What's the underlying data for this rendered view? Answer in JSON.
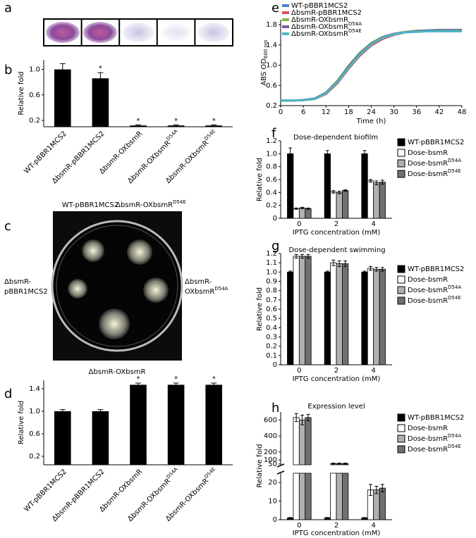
{
  "image_panels": [
    {
      "panel": "a"
    },
    {
      "panel": "c",
      "labels": [
        {
          "text": "WT-pBBR1MCS2"
        },
        {
          "text": "ΔbsmR-OXbsmR",
          "sup": "D54E"
        },
        {
          "text": "ΔbsmR-"
        },
        {
          "text": "pBBR1MCS2"
        },
        {
          "text": "ΔbsmR-"
        },
        {
          "text": "OXbsmR",
          "sup": "D54A"
        },
        {
          "text": "ΔbsmR-OXbsmR"
        }
      ]
    }
  ],
  "chart_data": [
    {
      "type": "bar",
      "panel": "b",
      "ylabel": "Relative fold",
      "categories": [
        "WT-pBBR1MCS2",
        "ΔbsmR-pBBR1MCS2",
        "ΔbsmR-OXbsmR",
        "ΔbsmR-OXbsmR",
        "ΔbsmR-OXbsmR"
      ],
      "category_superscripts": [
        null,
        null,
        null,
        "D54A",
        "D54E"
      ],
      "values": [
        1.0,
        0.86,
        0.12,
        0.12,
        0.12
      ],
      "errors": [
        0.09,
        0.09,
        0.01,
        0.01,
        0.01
      ],
      "annotations": [
        null,
        "*",
        "*",
        "*",
        "*"
      ],
      "color": "#000000",
      "ylim": [
        0.1,
        1.15
      ],
      "yticks": [
        0.2,
        0.6,
        {
          "value": 1,
          "label": "1.0"
        }
      ]
    },
    {
      "type": "bar",
      "panel": "d",
      "ylabel": "Relative fold",
      "categories": [
        "WT-pBBR1MCS2",
        "ΔbsmR-pBBR1MCS2",
        "ΔbsmR-OXbsmR",
        "ΔbsmR-OXbsmR",
        "ΔbsmR-OXbsmR"
      ],
      "category_superscripts": [
        null,
        null,
        null,
        "D54A",
        "D54E"
      ],
      "values": [
        1.0,
        1.0,
        1.47,
        1.47,
        1.47
      ],
      "errors": [
        0.03,
        0.03,
        0.03,
        0.03,
        0.03
      ],
      "annotations": [
        null,
        null,
        "*",
        "*",
        "*"
      ],
      "color": "#000000",
      "ylim": [
        0.05,
        1.55
      ],
      "yticks": [
        0.2,
        0.6,
        {
          "value": 1,
          "label": "1.0"
        },
        1.4
      ]
    },
    {
      "type": "line",
      "panel": "e",
      "xlabel": "Time (h)",
      "ylabel": "ABS OD",
      "ylabel_subscript": "600 nm",
      "x": [
        0,
        3,
        6,
        9,
        12,
        15,
        18,
        21,
        24,
        27,
        30,
        33,
        36,
        39,
        42,
        45,
        48
      ],
      "xlim": [
        0,
        48
      ],
      "xticks": [
        0,
        6,
        12,
        18,
        24,
        30,
        36,
        42,
        48
      ],
      "ylim": [
        0.2,
        1.9
      ],
      "yticks": [
        0.2,
        0.6,
        {
          "value": 1,
          "label": "1.0"
        },
        1.4,
        1.8
      ],
      "series": [
        {
          "name": "WT-pBBR1MCS2",
          "color": "#4a86c8",
          "values": [
            0.3,
            0.3,
            0.31,
            0.34,
            0.45,
            0.68,
            0.98,
            1.24,
            1.43,
            1.55,
            1.62,
            1.66,
            1.68,
            1.69,
            1.7,
            1.7,
            1.7
          ]
        },
        {
          "name": "ΔbsmR-pBBR1MCS2",
          "color": "#d9534f",
          "values": [
            0.3,
            0.3,
            0.31,
            0.33,
            0.43,
            0.64,
            0.93,
            1.19,
            1.39,
            1.52,
            1.6,
            1.65,
            1.67,
            1.68,
            1.69,
            1.69,
            1.69
          ]
        },
        {
          "name": "ΔbsmR-OXbsmR",
          "color": "#8ab44a",
          "values": [
            0.3,
            0.3,
            0.31,
            0.34,
            0.46,
            0.69,
            0.99,
            1.25,
            1.44,
            1.56,
            1.62,
            1.66,
            1.68,
            1.68,
            1.69,
            1.69,
            1.69
          ]
        },
        {
          "name": "ΔbsmR-OXbsmR",
          "name_superscript": "D54A",
          "color": "#7e57a0",
          "values": [
            0.3,
            0.3,
            0.31,
            0.34,
            0.45,
            0.67,
            0.97,
            1.23,
            1.42,
            1.55,
            1.62,
            1.65,
            1.67,
            1.68,
            1.68,
            1.68,
            1.68
          ]
        },
        {
          "name": "ΔbsmR-OXbsmR",
          "name_superscript": "D54E",
          "color": "#4bb6c8",
          "values": [
            0.3,
            0.3,
            0.31,
            0.33,
            0.44,
            0.66,
            0.95,
            1.21,
            1.41,
            1.54,
            1.61,
            1.65,
            1.66,
            1.67,
            1.67,
            1.67,
            1.67
          ]
        }
      ]
    },
    {
      "type": "grouped_bar",
      "panel": "f",
      "title": "Dose-dependent biofilm",
      "xlabel": "IPTG concentration (mM)",
      "ylabel": "Relative fold",
      "categories": [
        "0",
        "2",
        "4"
      ],
      "ylim": [
        0,
        1.2
      ],
      "yticks": [
        0,
        0.2,
        0.4,
        0.6,
        0.8,
        {
          "value": 1,
          "label": "1.0"
        },
        1.2
      ],
      "series": [
        {
          "name": "WT-pBBR1MCS2",
          "color": "#000000",
          "values": [
            1.0,
            1.0,
            1.0
          ],
          "errors": [
            0.09,
            0.05,
            0.05
          ]
        },
        {
          "name": "Dose-bsmR",
          "color": "#ffffff",
          "values": [
            0.15,
            0.41,
            0.58
          ],
          "errors": [
            0.01,
            0.02,
            0.02
          ]
        },
        {
          "name": "Dose-bsmR",
          "name_superscript": "D54A",
          "color": "#b0b0b0",
          "values": [
            0.16,
            0.4,
            0.55
          ],
          "errors": [
            0.01,
            0.02,
            0.03
          ]
        },
        {
          "name": "Dose-bsmR",
          "name_superscript": "D54E",
          "color": "#707070",
          "values": [
            0.15,
            0.43,
            0.56
          ],
          "errors": [
            0.01,
            0.01,
            0.03
          ]
        }
      ]
    },
    {
      "type": "grouped_bar",
      "panel": "g",
      "title": "Dose-dependent swimming",
      "xlabel": "IPTG concentration (mM)",
      "ylabel": "Relative fold",
      "categories": [
        "0",
        "2",
        "4"
      ],
      "ylim": [
        0,
        1.2
      ],
      "yticks": [
        0,
        0.1,
        0.2,
        0.3,
        0.4,
        0.5,
        0.6,
        0.7,
        0.8,
        0.9,
        {
          "value": 1,
          "label": "1.0"
        },
        1.1,
        1.2
      ],
      "series": [
        {
          "name": "WT-pBBR1MCS2",
          "color": "#000000",
          "values": [
            1.0,
            1.0,
            1.0
          ],
          "errors": [
            0.01,
            0.01,
            0.01
          ]
        },
        {
          "name": "Dose-bsmR",
          "color": "#ffffff",
          "values": [
            1.17,
            1.1,
            1.04
          ],
          "errors": [
            0.02,
            0.03,
            0.02
          ]
        },
        {
          "name": "Dose-bsmR",
          "name_superscript": "D54A",
          "color": "#b0b0b0",
          "values": [
            1.17,
            1.09,
            1.03
          ],
          "errors": [
            0.02,
            0.03,
            0.02
          ]
        },
        {
          "name": "Dose-bsmR",
          "name_superscript": "D54E",
          "color": "#707070",
          "values": [
            1.17,
            1.09,
            1.03
          ],
          "errors": [
            0.02,
            0.03,
            0.02
          ]
        }
      ]
    },
    {
      "type": "broken_bar",
      "panel": "h",
      "title": "Expression level",
      "xlabel": "IPTG concentration (mM)",
      "ylabel": "Relative fold",
      "categories": [
        "0",
        "2",
        "4"
      ],
      "ylim_lower": [
        0,
        25
      ],
      "yticks_lower": [
        0,
        10,
        20
      ],
      "ylim_upper": [
        40,
        700
      ],
      "yticks_upper": [
        50,
        100,
        200,
        400,
        600
      ],
      "series": [
        {
          "name": "WT-pBBR1MCS2",
          "color": "#000000",
          "values": [
            1,
            1,
            1
          ],
          "errors": [
            0.2,
            0.2,
            0.2
          ]
        },
        {
          "name": "Dose-bsmR",
          "color": "#ffffff",
          "values": [
            630,
            55,
            16
          ],
          "errors": [
            50,
            6,
            3
          ]
        },
        {
          "name": "Dose-bsmR",
          "name_superscript": "D54A",
          "color": "#b0b0b0",
          "values": [
            600,
            55,
            16
          ],
          "errors": [
            60,
            6,
            2
          ]
        },
        {
          "name": "Dose-bsmR",
          "name_superscript": "D54E",
          "color": "#707070",
          "values": [
            630,
            55,
            17
          ],
          "errors": [
            40,
            6,
            2
          ]
        }
      ]
    }
  ]
}
